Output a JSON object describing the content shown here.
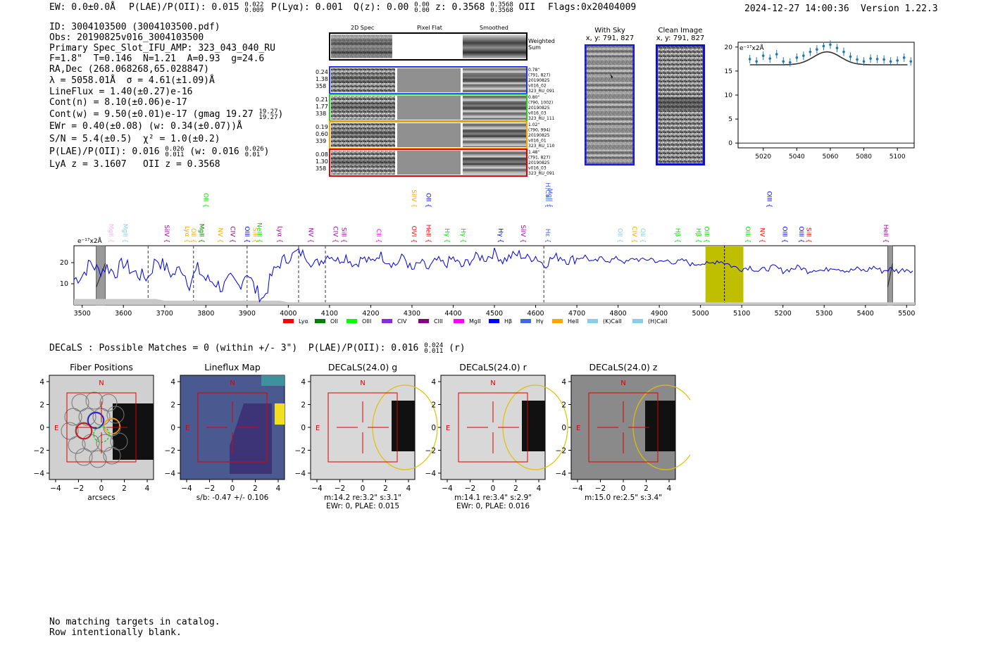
{
  "header": {
    "ew": "EW: 0.0±0.0Å",
    "plae_label": "P(LAE)/P(OII): 0.015",
    "plae_hi": "0.022",
    "plae_lo": "0.009",
    "plya": "P(Lyα): 0.001",
    "qz_label": "Q(z): 0.00",
    "qz_hi": "0.00",
    "qz_lo": "0.00",
    "z_label": "z: 0.3568",
    "z_hi": "0.3568",
    "z_lo": "0.3568",
    "z_line": "OII",
    "flags": "Flags:0x20404009",
    "datetime": "2024-12-27 14:00:36",
    "version": "Version 1.22.3"
  },
  "info": {
    "id": "ID: 3004103500 (3004103500.pdf)",
    "obs": "Obs: 20190825v016_3004103500",
    "primary": "Primary Spec_Slot_IFU_AMP: 323_043_040_RU",
    "params": "F=1.8\"  T=0.146  N=1.21  A=0.93  g=24.6",
    "radec": "RA,Dec (268.068268,65.028847)",
    "lambda": "λ = 5058.01Å  σ = 4.61(±1.09)Å",
    "lineflux": "LineFlux = 1.40(±0.27)e-16",
    "contn": "Cont(n) = 8.10(±0.06)e-17",
    "contw": "Cont(w) = 9.50(±0.01)e-17 (gmag 19.27",
    "contw_hi": "19.27",
    "contw_lo": "19.27",
    "ewr": "EWr = 0.40(±0.08) (w: 0.34(±0.07))Å",
    "sn": "S/N = 5.4(±0.5)  χ² = 1.0(±0.2)",
    "plae2": "P(LAE)/P(OII): 0.016",
    "plae2_hi": "0.026",
    "plae2_lo": "0.011",
    "plae2_w": "(w: 0.016",
    "plae2_w_hi": "0.026",
    "plae2_w_lo": "0.01",
    "lyaz": "LyA z = 3.1607   OII z = 0.3568"
  },
  "cutouts": {
    "col_2d": "2D Spec",
    "col_flat": "Pixel Flat",
    "col_smooth": "Smoothed",
    "weighted": "Weighted",
    "sum": "Sum",
    "rows": [
      {
        "l1": "0.24",
        "l2": "1.38",
        "l3": "358",
        "r1": "0.78\"",
        "r2": "(791, 827)",
        "r3": "20190825",
        "r4": "v016_02",
        "r5": "323_RU_091",
        "color": "#2030ff"
      },
      {
        "l1": "0.21",
        "l2": "1.77",
        "l3": "338",
        "r1": "0.80\"",
        "r2": "(790, 1002)",
        "r3": "20190825",
        "r4": "v016_03",
        "r5": "323_RU_111",
        "color": "#20d020"
      },
      {
        "l1": "0.19",
        "l2": "0.60",
        "l3": "339",
        "r1": "1.02\"",
        "r2": "(790, 994)",
        "r3": "20190825",
        "r4": "v016_01",
        "r5": "323_RU_110",
        "color": "#ffa500"
      },
      {
        "l1": "0.08",
        "l2": "1.30",
        "l3": "358",
        "r1": "1.48\"",
        "r2": "(791, 827)",
        "r3": "20190825",
        "r4": "v016_03",
        "r5": "323_RU_091",
        "color": "#e00000"
      }
    ],
    "withsky_title": "With Sky",
    "withsky_xy": "x, y: 791, 827",
    "clean_title": "Clean Image",
    "clean_xy": "x, y: 791, 827"
  },
  "zoom_chart": {
    "type": "scatter",
    "unit_label": "e⁻¹⁷x2Å",
    "x": [
      5012,
      5016,
      5020,
      5024,
      5028,
      5032,
      5036,
      5040,
      5044,
      5048,
      5052,
      5056,
      5060,
      5064,
      5068,
      5072,
      5076,
      5080,
      5084,
      5088,
      5092,
      5096,
      5100,
      5104,
      5108
    ],
    "y": [
      17.5,
      17.0,
      18.2,
      17.6,
      18.5,
      17.0,
      16.8,
      17.8,
      18.2,
      19.0,
      19.5,
      20.2,
      20.5,
      19.8,
      19.0,
      18.0,
      17.4,
      17.0,
      17.6,
      17.5,
      17.4,
      17.0,
      17.2,
      17.8,
      17.0
    ],
    "model_peak": 19.0,
    "model_base": 16.3,
    "xlim": [
      5005,
      5110
    ],
    "ylim": [
      -1,
      21
    ],
    "xticks": [
      5020,
      5040,
      5060,
      5080,
      5100
    ],
    "yticks": [
      0,
      5,
      10,
      15,
      20
    ]
  },
  "chart_data": {
    "type": "line",
    "title": "",
    "unit_label": "e⁻¹⁷x2Å",
    "xlabel": "",
    "ylabel": "",
    "xlim": [
      3480,
      5520
    ],
    "ylim": [
      0,
      28
    ],
    "xticks": [
      3500,
      3600,
      3700,
      3800,
      3900,
      4000,
      4100,
      4200,
      4300,
      4400,
      4500,
      4600,
      4700,
      4800,
      4900,
      5000,
      5100,
      5200,
      5300,
      5400,
      5500
    ],
    "yticks": [
      10,
      20
    ],
    "highlight_band": [
      5012,
      5104
    ],
    "peak_marker": 5058,
    "dashed_lines": [
      3660,
      3770,
      3900,
      4025,
      4090,
      4620
    ],
    "hatched_regions": [
      [
        3534,
        3556
      ],
      [
        5454,
        5466
      ]
    ],
    "series_points": [
      [
        3480,
        12
      ],
      [
        3500,
        14
      ],
      [
        3520,
        20
      ],
      [
        3540,
        16
      ],
      [
        3560,
        18
      ],
      [
        3580,
        15
      ],
      [
        3600,
        20
      ],
      [
        3620,
        16
      ],
      [
        3640,
        14
      ],
      [
        3660,
        13
      ],
      [
        3680,
        22
      ],
      [
        3700,
        18
      ],
      [
        3720,
        14
      ],
      [
        3740,
        18
      ],
      [
        3760,
        10
      ],
      [
        3780,
        17
      ],
      [
        3800,
        12
      ],
      [
        3820,
        11
      ],
      [
        3840,
        8
      ],
      [
        3860,
        12
      ],
      [
        3880,
        9
      ],
      [
        3900,
        16
      ],
      [
        3920,
        7
      ],
      [
        3940,
        3
      ],
      [
        3960,
        14
      ],
      [
        3980,
        20
      ],
      [
        4000,
        22
      ],
      [
        4020,
        25
      ],
      [
        4040,
        24
      ],
      [
        4060,
        19
      ],
      [
        4080,
        21
      ],
      [
        4100,
        24
      ],
      [
        4120,
        21
      ],
      [
        4140,
        23
      ],
      [
        4160,
        19
      ],
      [
        4180,
        22
      ],
      [
        4200,
        20
      ],
      [
        4220,
        24
      ],
      [
        4240,
        21
      ],
      [
        4260,
        19
      ],
      [
        4280,
        23
      ],
      [
        4300,
        16
      ],
      [
        4320,
        20
      ],
      [
        4340,
        17
      ],
      [
        4360,
        21
      ],
      [
        4380,
        19
      ],
      [
        4400,
        22
      ],
      [
        4420,
        18
      ],
      [
        4440,
        21
      ],
      [
        4460,
        23
      ],
      [
        4480,
        22
      ],
      [
        4500,
        25
      ],
      [
        4520,
        21
      ],
      [
        4540,
        23
      ],
      [
        4560,
        24
      ],
      [
        4580,
        22
      ],
      [
        4600,
        23
      ],
      [
        4620,
        19
      ],
      [
        4640,
        22
      ],
      [
        4660,
        23
      ],
      [
        4680,
        21
      ],
      [
        4700,
        22
      ],
      [
        4720,
        23
      ],
      [
        4740,
        20
      ],
      [
        4760,
        22
      ],
      [
        4780,
        21
      ],
      [
        4800,
        22
      ],
      [
        4820,
        20
      ],
      [
        4840,
        22
      ],
      [
        4860,
        21
      ],
      [
        4880,
        22
      ],
      [
        4900,
        20
      ],
      [
        4920,
        21
      ],
      [
        4940,
        20
      ],
      [
        4960,
        21
      ],
      [
        4980,
        19
      ],
      [
        5000,
        20
      ],
      [
        5020,
        19
      ],
      [
        5040,
        21
      ],
      [
        5060,
        20
      ],
      [
        5080,
        18
      ],
      [
        5100,
        17
      ],
      [
        5120,
        18
      ],
      [
        5140,
        16
      ],
      [
        5160,
        17
      ],
      [
        5180,
        18
      ],
      [
        5200,
        16
      ],
      [
        5220,
        17
      ],
      [
        5240,
        18
      ],
      [
        5260,
        16
      ],
      [
        5280,
        17
      ],
      [
        5300,
        16
      ],
      [
        5320,
        18
      ],
      [
        5340,
        17
      ],
      [
        5360,
        16
      ],
      [
        5380,
        17
      ],
      [
        5400,
        16
      ],
      [
        5420,
        18
      ],
      [
        5440,
        16
      ],
      [
        5460,
        17
      ],
      [
        5480,
        16
      ],
      [
        5500,
        17
      ],
      [
        5520,
        16
      ]
    ],
    "legend": [
      {
        "name": "Lyα",
        "color": "#ff0000"
      },
      {
        "name": "OII",
        "color": "#008000"
      },
      {
        "name": "OIII",
        "color": "#00ff00"
      },
      {
        "name": "CIV",
        "color": "#8a2be2"
      },
      {
        "name": "CIII",
        "color": "#800080"
      },
      {
        "name": "MgII",
        "color": "#ff00ff"
      },
      {
        "name": "Hβ",
        "color": "#0000ff"
      },
      {
        "name": "Hγ",
        "color": "#4169e1"
      },
      {
        "name": "HeII",
        "color": "#ffa500"
      },
      {
        "name": "(K)CaII",
        "color": "#87ceeb"
      },
      {
        "name": "(H)CaII",
        "color": "#87ceeb"
      }
    ],
    "line_labels": [
      {
        "t": "MgII",
        "w": 3565,
        "c": "#ffb0ff",
        "row": 1
      },
      {
        "t": "MgII",
        "w": 3600,
        "c": "#87ceeb",
        "row": 1
      },
      {
        "t": "SiIV",
        "w": 3700,
        "c": "#a000a0",
        "row": 1
      },
      {
        "t": "Lyα",
        "w": 3750,
        "c": "#ffa500",
        "row": 1
      },
      {
        "t": "OII",
        "w": 3765,
        "c": "#ffa500",
        "row": 1
      },
      {
        "t": "MgII",
        "w": 3785,
        "c": "#008000",
        "row": 1
      },
      {
        "t": "OII",
        "w": 3795,
        "c": "#00e000",
        "row": 0
      },
      {
        "t": "NV",
        "w": 3830,
        "c": "#ffa500",
        "row": 1
      },
      {
        "t": "CIV",
        "w": 3860,
        "c": "#800080",
        "row": 1
      },
      {
        "t": "OIII",
        "w": 3895,
        "c": "#0000ff",
        "row": 1
      },
      {
        "t": "SiII",
        "w": 3915,
        "c": "#ffa500",
        "row": 1
      },
      {
        "t": "NeIII",
        "w": 3925,
        "c": "#00e000",
        "row": 1
      },
      {
        "t": "Lyα",
        "w": 3975,
        "c": "#a000a0",
        "row": 1
      },
      {
        "t": "NV",
        "w": 4050,
        "c": "#a000a0",
        "row": 1
      },
      {
        "t": "CIV",
        "w": 4110,
        "c": "#a000a0",
        "row": 1
      },
      {
        "t": "SiII",
        "w": 4130,
        "c": "#a000a0",
        "row": 1
      },
      {
        "t": "CII",
        "w": 4215,
        "c": "#ff00ff",
        "row": 1
      },
      {
        "t": "SiIV",
        "w": 4300,
        "c": "#ffa500",
        "row": 0
      },
      {
        "t": "OVI",
        "w": 4300,
        "c": "#ff0000",
        "row": 1
      },
      {
        "t": "OII",
        "w": 4335,
        "c": "#0000ff",
        "row": 0
      },
      {
        "t": "HeII",
        "w": 4335,
        "c": "#ff0000",
        "row": 1
      },
      {
        "t": "Hγ",
        "w": 4380,
        "c": "#00e000",
        "row": 1
      },
      {
        "t": "Hγ",
        "w": 4420,
        "c": "#00e000",
        "row": 1
      },
      {
        "t": "Hγ",
        "w": 4510,
        "c": "#0000ff",
        "row": 1
      },
      {
        "t": "SiIV",
        "w": 4565,
        "c": "#a000a0",
        "row": 1
      },
      {
        "t": "(H)CaII",
        "w": 4625,
        "c": "#4169e1",
        "row": 0
      },
      {
        "t": "MgII",
        "w": 4630,
        "c": "#4169e1",
        "row": 0
      },
      {
        "t": "Hε",
        "w": 4625,
        "c": "#4169e1",
        "row": 1
      },
      {
        "t": "OII",
        "w": 4800,
        "c": "#87ceeb",
        "row": 1
      },
      {
        "t": "CIV",
        "w": 4835,
        "c": "#ffa500",
        "row": 1
      },
      {
        "t": "OII",
        "w": 4855,
        "c": "#87ceeb",
        "row": 1
      },
      {
        "t": "Hβ",
        "w": 4940,
        "c": "#00e000",
        "row": 1
      },
      {
        "t": "Hβ",
        "w": 4990,
        "c": "#00e000",
        "row": 1
      },
      {
        "t": "OIII",
        "w": 5010,
        "c": "#00e000",
        "row": 1
      },
      {
        "t": "OIII",
        "w": 5110,
        "c": "#00e000",
        "row": 1
      },
      {
        "t": "OIII",
        "w": 5162,
        "c": "#0000ff",
        "row": 0
      },
      {
        "t": "NV",
        "w": 5145,
        "c": "#ff0000",
        "row": 1
      },
      {
        "t": "OIII",
        "w": 5200,
        "c": "#0000ff",
        "row": 1
      },
      {
        "t": "OIII",
        "w": 5240,
        "c": "#0000ff",
        "row": 1
      },
      {
        "t": "SiII",
        "w": 5258,
        "c": "#ff0000",
        "row": 1
      },
      {
        "t": "HeII",
        "w": 5445,
        "c": "#a000a0",
        "row": 1
      }
    ]
  },
  "decals": {
    "title": "DECaLS : Possible Matches = 0 (within +/- 3\")  P(LAE)/P(OII): 0.016",
    "hi": "0.024",
    "lo": "0.011",
    "band": "(r)",
    "panels": [
      {
        "title": "Fiber Positions",
        "cap1": "arcsecs",
        "cap2": ""
      },
      {
        "title": "Lineflux Map",
        "cap1": "s/b: -0.47 +/- 0.106",
        "cap2": ""
      },
      {
        "title": "DECaLS(24.0) g",
        "cap1": "m:14.2  re:3.2\"  s:3.1\"",
        "cap2": "EWr: 0, PLAE: 0.015"
      },
      {
        "title": "DECaLS(24.0) r",
        "cap1": "m:14.1  re:3.4\"  s:2.9\"",
        "cap2": "EWr: 0, PLAE: 0.016"
      },
      {
        "title": "DECaLS(24.0) z",
        "cap1": "m:15.0  re:2.5\"  s:3.4\"",
        "cap2": ""
      }
    ],
    "axis_ticks": [
      "4",
      "2",
      "0",
      "−2",
      "−4"
    ],
    "xaxis_ticks": [
      "−4",
      "−2",
      "0",
      "2",
      "4"
    ],
    "north": "N",
    "east": "E"
  },
  "footer": {
    "line1": "No matching targets in catalog.",
    "line2": "Row intentionally blank."
  }
}
